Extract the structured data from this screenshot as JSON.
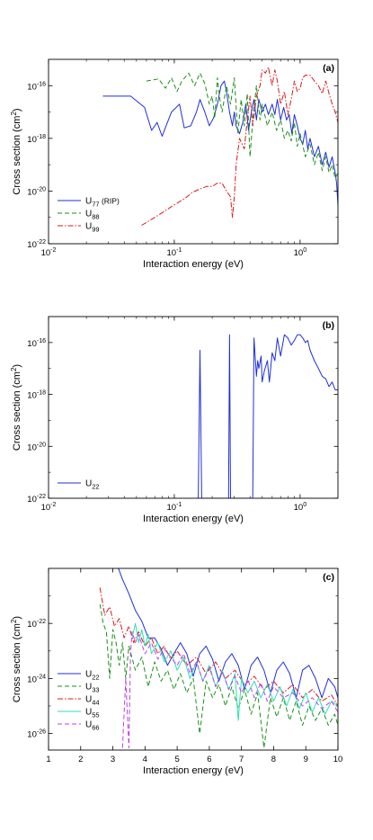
{
  "chart_data": [
    {
      "type": "line",
      "panel_label": "(a)",
      "xlabel": "Interaction energy (eV)",
      "ylabel": "Cross section (cm",
      "ylabel_sup": "2",
      "ylabel_end": ")",
      "xscale": "log",
      "yscale": "log",
      "xlim": [
        0.01,
        2
      ],
      "ylim": [
        1e-22,
        1e-15
      ],
      "x_ticks": [
        {
          "v": 0.01,
          "m": "10",
          "e": "-2"
        },
        {
          "v": 0.1,
          "m": "10",
          "e": "-1"
        },
        {
          "v": 1,
          "m": "10",
          "e": "0"
        }
      ],
      "y_ticks": [
        {
          "v": 1e-22,
          "m": "10",
          "e": "-22"
        },
        {
          "v": 1e-20,
          "m": "10",
          "e": "-20"
        },
        {
          "v": 1e-18,
          "m": "10",
          "e": "-18"
        },
        {
          "v": 1e-16,
          "m": "10",
          "e": "-16"
        }
      ],
      "legend_position": "bottom-left",
      "series": [
        {
          "name": "U",
          "sub": "77",
          "suffix": " (RIP)",
          "color": "#1f2fd8",
          "dash": "",
          "x": [
            0.027,
            0.045,
            0.058,
            0.066,
            0.073,
            0.08,
            0.086,
            0.095,
            0.11,
            0.12,
            0.135,
            0.15,
            0.16,
            0.175,
            0.19,
            0.205,
            0.22,
            0.235,
            0.25,
            0.26,
            0.275,
            0.29,
            0.3,
            0.31,
            0.33,
            0.35,
            0.37,
            0.39,
            0.41,
            0.43,
            0.45,
            0.47,
            0.5,
            0.53,
            0.56,
            0.6,
            0.63,
            0.66,
            0.7,
            0.74,
            0.78,
            0.82,
            0.86,
            0.9,
            0.95,
            1.0,
            1.05,
            1.1,
            1.15,
            1.2,
            1.3,
            1.4,
            1.5,
            1.6,
            1.7,
            1.8,
            1.9,
            1.95,
            2.0
          ],
          "y": [
            4e-17,
            4e-17,
            1.5e-17,
            2e-18,
            4e-18,
            1.2e-18,
            3e-18,
            1e-17,
            2e-17,
            2.5e-18,
            3e-18,
            1e-17,
            3e-17,
            1e-17,
            3e-18,
            6e-18,
            2e-17,
            1e-16,
            1.5e-16,
            6e-17,
            1e-17,
            3e-18,
            1e-17,
            3e-18,
            1.5e-18,
            4e-18,
            2e-17,
            2e-18,
            1e-17,
            3e-17,
            5e-18,
            3e-17,
            1e-17,
            2e-17,
            8e-18,
            2e-17,
            8e-18,
            3e-17,
            5e-18,
            1.5e-17,
            5e-18,
            8e-18,
            1.5e-18,
            8e-18,
            3e-18,
            1e-18,
            6e-19,
            2e-18,
            4e-19,
            1e-18,
            2e-19,
            5e-19,
            1e-19,
            3e-19,
            8e-20,
            2e-19,
            5e-20,
            2e-20,
            3e-21
          ]
        },
        {
          "name": "U",
          "sub": "88",
          "suffix": "",
          "color": "#1a8f1a",
          "dash": "5,3",
          "x": [
            0.06,
            0.075,
            0.085,
            0.095,
            0.105,
            0.115,
            0.13,
            0.145,
            0.16,
            0.175,
            0.19,
            0.2,
            0.21,
            0.22,
            0.23,
            0.24,
            0.26,
            0.28,
            0.3,
            0.32,
            0.34,
            0.36,
            0.38,
            0.4,
            0.42,
            0.45,
            0.48,
            0.5,
            0.55,
            0.6,
            0.65,
            0.7,
            0.75,
            0.8,
            0.85,
            0.9,
            0.95,
            1.0,
            1.1,
            1.2,
            1.3,
            1.4,
            1.5,
            1.6,
            1.7,
            1.8,
            1.9,
            2.0
          ],
          "y": [
            1.5e-16,
            1.8e-16,
            8e-17,
            2e-16,
            6e-17,
            1.5e-16,
            3e-16,
            1e-16,
            3e-16,
            1.2e-16,
            2e-17,
            4e-17,
            6e-18,
            2e-16,
            3e-17,
            1e-17,
            1e-16,
            2e-17,
            2e-16,
            1.5e-18,
            3e-17,
            3e-18,
            5e-17,
            2e-19,
            5e-18,
            1e-16,
            5e-18,
            2e-17,
            3e-18,
            1e-17,
            2e-18,
            5e-18,
            1e-18,
            2e-18,
            8e-19,
            4e-18,
            5e-19,
            1.5e-18,
            2e-19,
            6e-19,
            1e-19,
            3e-19,
            6e-20,
            2e-19,
            5e-20,
            1e-19,
            3e-20,
            5e-20
          ]
        },
        {
          "name": "U",
          "sub": "99",
          "suffix": "",
          "color": "#d81818",
          "dash": "6,2,1.5,2",
          "x": [
            0.055,
            0.07,
            0.085,
            0.1,
            0.12,
            0.14,
            0.16,
            0.18,
            0.2,
            0.22,
            0.24,
            0.26,
            0.28,
            0.29,
            0.3,
            0.31,
            0.33,
            0.36,
            0.38,
            0.4,
            0.42,
            0.45,
            0.48,
            0.5,
            0.53,
            0.56,
            0.6,
            0.63,
            0.66,
            0.7,
            0.75,
            0.8,
            0.85,
            0.9,
            0.95,
            1.0,
            1.05,
            1.1,
            1.2,
            1.3,
            1.4,
            1.5,
            1.6,
            1.7,
            1.8,
            1.9,
            2.0
          ],
          "y": [
            5e-22,
            1e-21,
            1.8e-21,
            3e-21,
            5e-21,
            9e-21,
            1.2e-20,
            1.5e-20,
            1.5e-20,
            2e-20,
            2e-20,
            1e-20,
            6e-21,
            1e-21,
            6e-21,
            1e-19,
            1e-18,
            4e-19,
            5e-18,
            4e-17,
            3e-18,
            4e-17,
            1e-16,
            4e-16,
            3e-16,
            5e-16,
            1e-16,
            4e-16,
            1.5e-16,
            2e-17,
            6e-17,
            8e-18,
            3e-17,
            1.5e-16,
            6e-17,
            8e-17,
            2e-16,
            2.5e-16,
            2.5e-16,
            1.5e-16,
            1e-16,
            5e-17,
            1.5e-16,
            5e-17,
            2e-17,
            1e-17,
            4e-18
          ]
        }
      ]
    },
    {
      "type": "line",
      "panel_label": "(b)",
      "xlabel": "Interaction energy (eV)",
      "ylabel": "Cross section (cm",
      "ylabel_sup": "2",
      "ylabel_end": ")",
      "xscale": "log",
      "yscale": "log",
      "xlim": [
        0.01,
        2
      ],
      "ylim": [
        1e-22,
        1e-15
      ],
      "x_ticks": [
        {
          "v": 0.01,
          "m": "10",
          "e": "-2"
        },
        {
          "v": 0.1,
          "m": "10",
          "e": "-1"
        },
        {
          "v": 1,
          "m": "10",
          "e": "0"
        }
      ],
      "y_ticks": [
        {
          "v": 1e-22,
          "m": "10",
          "e": "-22"
        },
        {
          "v": 1e-20,
          "m": "10",
          "e": "-20"
        },
        {
          "v": 1e-18,
          "m": "10",
          "e": "-18"
        },
        {
          "v": 1e-16,
          "m": "10",
          "e": "-16"
        }
      ],
      "legend_position": "bottom-left",
      "series": [
        {
          "name": "U",
          "sub": "22",
          "suffix": "",
          "color": "#1f2fd8",
          "dash": "",
          "x": [
            0.155,
            0.16,
            0.165,
            0.17,
            0.27,
            0.275,
            0.28,
            0.285,
            0.42,
            0.43,
            0.45,
            0.46,
            0.47,
            0.49,
            0.5,
            0.52,
            0.55,
            0.57,
            0.6,
            0.63,
            0.66,
            0.7,
            0.75,
            0.8,
            0.85,
            0.9,
            0.95,
            1.0,
            1.05,
            1.1,
            1.15,
            1.2,
            1.3,
            1.4,
            1.5,
            1.6,
            1.7,
            1.8,
            1.9,
            2.0
          ],
          "y": [
            1e-22,
            5e-17,
            1e-22,
            1e-22,
            1e-22,
            2e-16,
            1e-22,
            1e-22,
            1e-22,
            1.5e-16,
            5e-18,
            2e-17,
            1e-17,
            3e-17,
            3e-18,
            8e-18,
            2e-17,
            3e-18,
            4e-17,
            2e-17,
            1.5e-16,
            3e-17,
            2e-16,
            1.5e-16,
            8e-17,
            1.2e-16,
            2e-16,
            2e-16,
            1.5e-16,
            1e-16,
            1.2e-16,
            5e-17,
            2e-17,
            1e-17,
            5e-18,
            4e-18,
            2e-18,
            3e-18,
            1.5e-18,
            1.5e-18
          ]
        }
      ]
    },
    {
      "type": "line",
      "panel_label": "(c)",
      "xlabel": "Interaction energy (eV)",
      "ylabel": "Cross section (cm",
      "ylabel_sup": "2",
      "ylabel_end": ")",
      "xscale": "linear",
      "yscale": "log",
      "xlim": [
        1,
        10
      ],
      "ylim": [
        2.5e-27,
        1e-20
      ],
      "x_ticks": [
        {
          "v": 1,
          "m": "1",
          "e": ""
        },
        {
          "v": 2,
          "m": "2",
          "e": ""
        },
        {
          "v": 3,
          "m": "3",
          "e": ""
        },
        {
          "v": 4,
          "m": "4",
          "e": ""
        },
        {
          "v": 5,
          "m": "5",
          "e": ""
        },
        {
          "v": 6,
          "m": "6",
          "e": ""
        },
        {
          "v": 7,
          "m": "7",
          "e": ""
        },
        {
          "v": 8,
          "m": "8",
          "e": ""
        },
        {
          "v": 9,
          "m": "9",
          "e": ""
        },
        {
          "v": 10,
          "m": "10",
          "e": ""
        }
      ],
      "y_ticks": [
        {
          "v": 1e-26,
          "m": "10",
          "e": "-26"
        },
        {
          "v": 1e-24,
          "m": "10",
          "e": "-24"
        },
        {
          "v": 1e-22,
          "m": "10",
          "e": "-22"
        }
      ],
      "legend_position": "bottom-left",
      "series": [
        {
          "name": "U",
          "sub": "22",
          "suffix": "",
          "color": "#1f2fd8",
          "dash": "",
          "x": [
            3.15,
            3.3,
            3.5,
            3.7,
            3.9,
            4.1,
            4.3,
            4.5,
            4.7,
            4.9,
            5.1,
            5.3,
            5.5,
            5.7,
            5.9,
            6.1,
            6.3,
            6.5,
            6.7,
            6.9,
            7.1,
            7.3,
            7.5,
            7.7,
            7.9,
            8.1,
            8.3,
            8.5,
            8.7,
            8.9,
            9.1,
            9.3,
            9.5,
            9.7,
            9.9,
            10.0
          ],
          "y": [
            1.2e-20,
            4e-21,
            1.2e-21,
            3e-22,
            1.2e-22,
            3e-23,
            3e-23,
            1.2e-23,
            3e-24,
            8e-24,
            2e-23,
            8e-24,
            1.2e-24,
            8e-24,
            1.5e-23,
            5e-24,
            8e-25,
            4e-24,
            8e-24,
            3e-24,
            4e-25,
            3e-24,
            6e-24,
            2e-24,
            3e-25,
            2e-24,
            4e-24,
            1.5e-24,
            2e-25,
            2e-24,
            3e-24,
            1e-24,
            2e-25,
            1e-24,
            5e-25,
            2e-25
          ]
        },
        {
          "name": "U",
          "sub": "33",
          "suffix": "",
          "color": "#1a8f1a",
          "dash": "5,3",
          "x": [
            2.6,
            2.7,
            2.8,
            2.9,
            3.0,
            3.1,
            3.2,
            3.3,
            3.4,
            3.5,
            3.7,
            3.9,
            4.1,
            4.3,
            4.5,
            4.7,
            4.9,
            5.1,
            5.3,
            5.5,
            5.7,
            5.9,
            6.1,
            6.3,
            6.5,
            6.7,
            6.9,
            7.1,
            7.3,
            7.5,
            7.7,
            7.9,
            8.1,
            8.3,
            8.5,
            8.7,
            8.9,
            9.1,
            9.3,
            9.5,
            9.7,
            9.9,
            10.0
          ],
          "y": [
            5e-22,
            1e-22,
            5e-23,
            1e-24,
            6e-23,
            2e-23,
            3e-24,
            2e-23,
            1e-24,
            1.5e-23,
            2e-24,
            6e-24,
            5e-25,
            4e-24,
            8e-25,
            2e-24,
            4e-25,
            1.5e-24,
            3e-25,
            1e-24,
            1e-26,
            8e-25,
            2e-25,
            6e-25,
            1e-25,
            5e-25,
            8e-26,
            4e-25,
            5e-26,
            3e-25,
            3e-27,
            2e-25,
            4e-26,
            2e-25,
            3e-26,
            1.5e-25,
            2e-26,
            1e-25,
            3e-26,
            8e-26,
            2e-26,
            5e-26,
            2e-26
          ]
        },
        {
          "name": "U",
          "sub": "44",
          "suffix": "",
          "color": "#d81818",
          "dash": "6,2,1.5,2",
          "x": [
            2.6,
            2.75,
            2.9,
            3.05,
            3.2,
            3.35,
            3.5,
            3.65,
            3.8,
            4.0,
            4.2,
            4.4,
            4.6,
            4.8,
            5.0,
            5.3,
            5.6,
            5.9,
            6.2,
            6.5,
            6.8,
            7.1,
            7.4,
            7.7,
            8.0,
            8.3,
            8.6,
            8.9,
            9.2,
            9.5,
            9.8,
            10.0
          ],
          "y": [
            2e-21,
            2e-22,
            4e-22,
            8e-23,
            1.5e-22,
            3e-23,
            8e-23,
            2e-23,
            5e-23,
            1.5e-23,
            3e-23,
            8e-24,
            1.5e-23,
            5e-24,
            1e-23,
            3e-24,
            6e-24,
            1.5e-24,
            4e-24,
            1e-24,
            2e-24,
            6e-25,
            1.2e-24,
            4e-25,
            8e-25,
            3e-25,
            6e-25,
            2e-25,
            4e-25,
            1.5e-25,
            2.5e-25,
            1e-25
          ]
        },
        {
          "name": "U",
          "sub": "55",
          "suffix": "",
          "color": "#2de0b4",
          "dash": "",
          "x": [
            3.6,
            3.7,
            3.8,
            3.9,
            4.0,
            4.1,
            4.2,
            4.4,
            4.6,
            4.8,
            5.0,
            5.2,
            5.4,
            5.6,
            5.8,
            6.0,
            6.2,
            6.4,
            6.6,
            6.8,
            6.9,
            7.0,
            7.2,
            7.4,
            7.6,
            7.8,
            8.0,
            8.2,
            8.4,
            8.6,
            8.8,
            9.0,
            9.2,
            9.4,
            9.6,
            9.8,
            10.0
          ],
          "y": [
            3e-23,
            1e-22,
            2e-23,
            6e-23,
            1.5e-23,
            4e-23,
            8e-24,
            2e-23,
            4e-24,
            1e-23,
            2e-24,
            6e-24,
            1e-24,
            4e-24,
            8e-25,
            3e-24,
            5e-25,
            2e-24,
            4e-25,
            1.5e-24,
            3e-26,
            1e-24,
            3e-25,
            8e-25,
            2e-25,
            6e-25,
            1.5e-25,
            5e-25,
            1e-25,
            4e-25,
            8e-26,
            3e-25,
            6e-26,
            2e-25,
            5e-26,
            1.5e-25,
            1e-25
          ]
        },
        {
          "name": "U",
          "sub": "66",
          "suffix": "",
          "color": "#c23cf0",
          "dash": "5,3",
          "x": [
            3.3,
            3.4,
            3.5,
            3.55,
            3.6,
            3.7,
            3.8,
            4.0,
            4.2,
            4.4,
            4.6,
            4.8,
            5.0,
            5.2,
            5.4,
            5.6,
            5.8,
            6.0,
            6.2,
            6.4,
            6.6,
            6.8,
            7.0,
            7.2,
            7.4,
            7.6,
            7.8,
            8.0,
            8.3,
            8.6,
            8.9,
            9.2,
            9.5,
            9.8,
            10.0
          ],
          "y": [
            3e-27,
            1e-24,
            3e-27,
            8e-24,
            5e-23,
            2e-23,
            4e-23,
            8e-24,
            2e-23,
            5e-24,
            1.2e-23,
            6e-24,
            3e-24,
            8e-24,
            1.5e-24,
            4e-24,
            8e-25,
            2.5e-24,
            5e-25,
            1.8e-24,
            4e-25,
            1.2e-24,
            3e-25,
            9e-25,
            2e-25,
            7e-25,
            1.5e-25,
            5e-25,
            2e-25,
            3e-25,
            1e-25,
            2e-25,
            8e-26,
            1.5e-25,
            6e-26
          ]
        }
      ]
    }
  ]
}
